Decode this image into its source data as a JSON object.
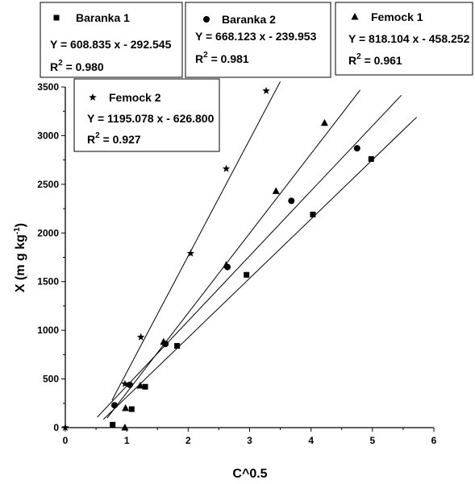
{
  "chart_data": {
    "type": "scatter",
    "xlabel": "C^0.5",
    "ylabel": "X (m g kg",
    "ylabel_sup": "-1",
    "ylabel_close": ")",
    "xlim": [
      0,
      6
    ],
    "ylim": [
      0,
      3500
    ],
    "x_ticks": [
      "0",
      "1",
      "2",
      "3",
      "4",
      "5",
      "6"
    ],
    "y_ticks": [
      "0",
      "500",
      "1000",
      "1500",
      "2000",
      "2500",
      "3000",
      "3500"
    ],
    "grid": false,
    "series": [
      {
        "name": "Baranka 1",
        "marker": "square",
        "equation": "Y = 608.835 x - 292.545",
        "r2_label": "R",
        "r2_sup": "2",
        "r2_value": " = 0.980",
        "fit": {
          "slope": 608.835,
          "intercept": -292.545,
          "x_range": [
            0.62,
            5.72
          ]
        },
        "points": [
          [
            0.77,
            30
          ],
          [
            1.08,
            190
          ],
          [
            1.3,
            420
          ],
          [
            1.82,
            840
          ],
          [
            2.95,
            1570
          ],
          [
            4.03,
            2190
          ],
          [
            4.98,
            2760
          ]
        ]
      },
      {
        "name": "Baranka 2",
        "marker": "circle",
        "equation": "Y = 668.123 x - 239.953",
        "r2_label": "R",
        "r2_sup": "2",
        "r2_value": " = 0.981",
        "fit": {
          "slope": 668.123,
          "intercept": -239.953,
          "x_range": [
            0.52,
            5.47
          ]
        },
        "points": [
          [
            0.8,
            230
          ],
          [
            1.05,
            440
          ],
          [
            1.63,
            860
          ],
          [
            2.64,
            1650
          ],
          [
            3.68,
            2330
          ],
          [
            4.75,
            2870
          ]
        ]
      },
      {
        "name": "Femock 1",
        "marker": "triangle",
        "equation": "Y = 818.104 x - 458.252",
        "r2_label": "R",
        "r2_sup": "2",
        "r2_value": " = 0.961",
        "fit": {
          "slope": 818.104,
          "intercept": -458.252,
          "x_range": [
            0.68,
            4.8
          ]
        },
        "points": [
          [
            0.97,
            0
          ],
          [
            0.98,
            200
          ],
          [
            1.22,
            430
          ],
          [
            1.6,
            880
          ],
          [
            2.62,
            1670
          ],
          [
            3.43,
            2430
          ],
          [
            4.22,
            3130
          ]
        ]
      },
      {
        "name": "Femock 2",
        "marker": "star",
        "equation": "Y = 1195.078 x - 626.800",
        "r2_label": "R",
        "r2_sup": "2",
        "r2_value": " = 0.927",
        "fit": {
          "slope": 1195.078,
          "intercept": -626.8,
          "x_range": [
            0.76,
            3.5
          ]
        },
        "points": [
          [
            0.0,
            0
          ],
          [
            0.97,
            450
          ],
          [
            1.23,
            930
          ],
          [
            2.04,
            1790
          ],
          [
            2.62,
            2660
          ],
          [
            3.27,
            3460
          ]
        ]
      }
    ]
  }
}
